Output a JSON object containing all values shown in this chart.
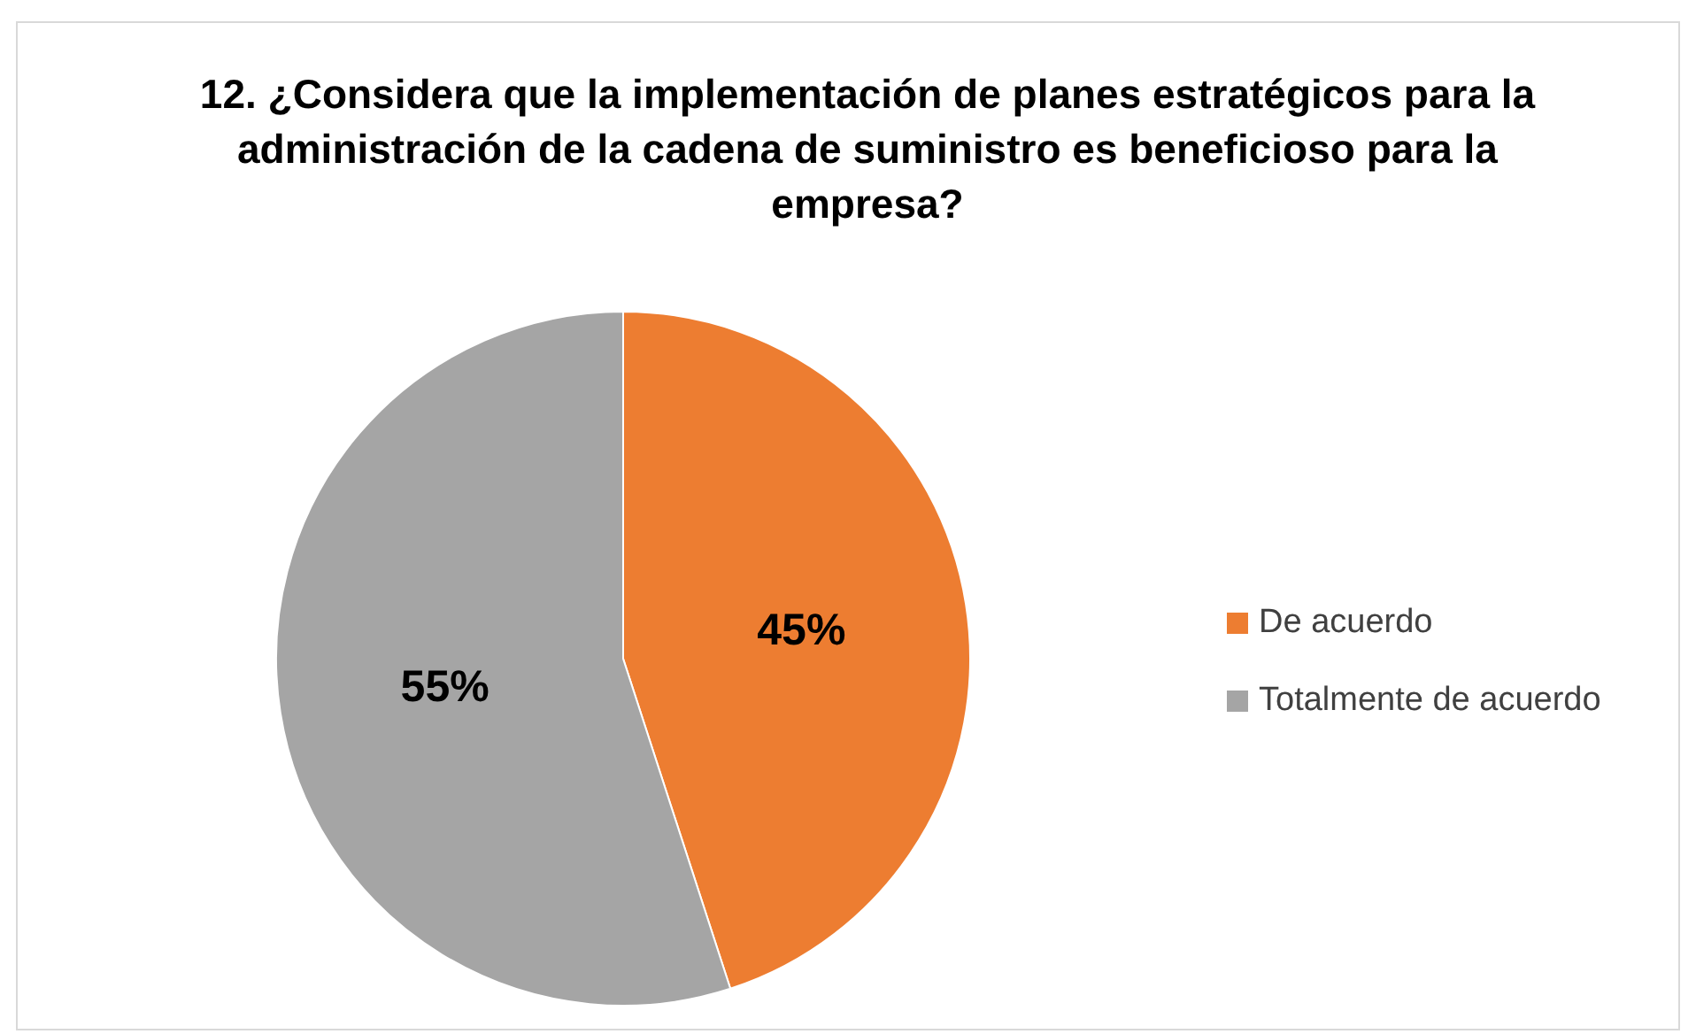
{
  "chart_data": {
    "type": "pie",
    "title": "12. ¿Considera que la implementación de planes estratégicos para la administración de la cadena de suministro es beneficioso para la empresa?",
    "categories": [
      "De acuerdo",
      "Totalmente de acuerdo"
    ],
    "values": [
      45,
      55
    ],
    "colors": [
      "#ed7d31",
      "#a5a5a5"
    ],
    "value_labels": [
      "45%",
      "55%"
    ],
    "legend": "right"
  }
}
